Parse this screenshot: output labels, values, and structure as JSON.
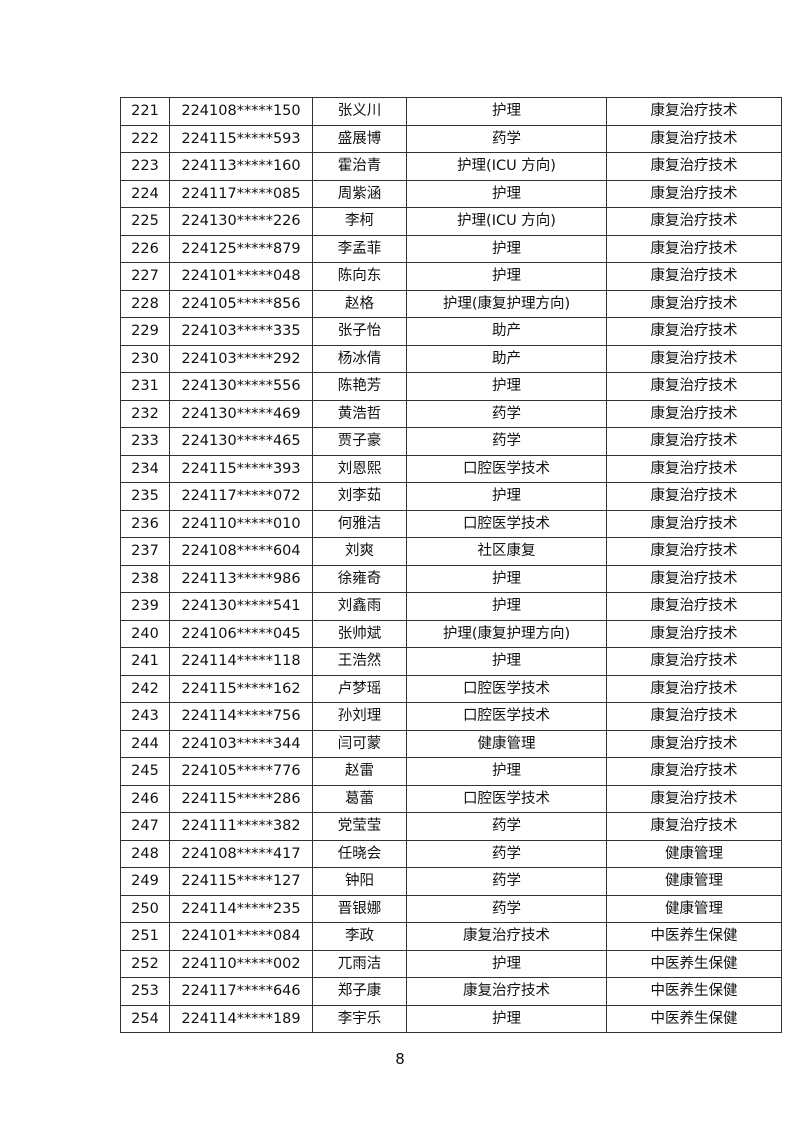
{
  "rows": [
    [
      "221",
      "224108*****150",
      "张义川",
      "护理",
      "康复治疗技术"
    ],
    [
      "222",
      "224115*****593",
      "盛展博",
      "药学",
      "康复治疗技术"
    ],
    [
      "223",
      "224113*****160",
      "霍治青",
      "护理(ICU 方向)",
      "康复治疗技术"
    ],
    [
      "224",
      "224117*****085",
      "周紫涵",
      "护理",
      "康复治疗技术"
    ],
    [
      "225",
      "224130*****226",
      "李柯",
      "护理(ICU 方向)",
      "康复治疗技术"
    ],
    [
      "226",
      "224125*****879",
      "李孟菲",
      "护理",
      "康复治疗技术"
    ],
    [
      "227",
      "224101*****048",
      "陈向东",
      "护理",
      "康复治疗技术"
    ],
    [
      "228",
      "224105*****856",
      "赵格",
      "护理(康复护理方向)",
      "康复治疗技术"
    ],
    [
      "229",
      "224103*****335",
      "张子怡",
      "助产",
      "康复治疗技术"
    ],
    [
      "230",
      "224103*****292",
      "杨冰倩",
      "助产",
      "康复治疗技术"
    ],
    [
      "231",
      "224130*****556",
      "陈艳芳",
      "护理",
      "康复治疗技术"
    ],
    [
      "232",
      "224130*****469",
      "黄浩哲",
      "药学",
      "康复治疗技术"
    ],
    [
      "233",
      "224130*****465",
      "贾子豪",
      "药学",
      "康复治疗技术"
    ],
    [
      "234",
      "224115*****393",
      "刘恩熙",
      "口腔医学技术",
      "康复治疗技术"
    ],
    [
      "235",
      "224117*****072",
      "刘李茹",
      "护理",
      "康复治疗技术"
    ],
    [
      "236",
      "224110*****010",
      "何雅洁",
      "口腔医学技术",
      "康复治疗技术"
    ],
    [
      "237",
      "224108*****604",
      "刘爽",
      "社区康复",
      "康复治疗技术"
    ],
    [
      "238",
      "224113*****986",
      "徐雍奇",
      "护理",
      "康复治疗技术"
    ],
    [
      "239",
      "224130*****541",
      "刘鑫雨",
      "护理",
      "康复治疗技术"
    ],
    [
      "240",
      "224106*****045",
      "张帅斌",
      "护理(康复护理方向)",
      "康复治疗技术"
    ],
    [
      "241",
      "224114*****118",
      "王浩然",
      "护理",
      "康复治疗技术"
    ],
    [
      "242",
      "224115*****162",
      "卢梦瑶",
      "口腔医学技术",
      "康复治疗技术"
    ],
    [
      "243",
      "224114*****756",
      "孙刘理",
      "口腔医学技术",
      "康复治疗技术"
    ],
    [
      "244",
      "224103*****344",
      "闫可蒙",
      "健康管理",
      "康复治疗技术"
    ],
    [
      "245",
      "224105*****776",
      "赵雷",
      "护理",
      "康复治疗技术"
    ],
    [
      "246",
      "224115*****286",
      "葛蕾",
      "口腔医学技术",
      "康复治疗技术"
    ],
    [
      "247",
      "224111*****382",
      "党莹莹",
      "药学",
      "康复治疗技术"
    ],
    [
      "248",
      "224108*****417",
      "任晓会",
      "药学",
      "健康管理"
    ],
    [
      "249",
      "224115*****127",
      "钟阳",
      "药学",
      "健康管理"
    ],
    [
      "250",
      "224114*****235",
      "晋银娜",
      "药学",
      "健康管理"
    ],
    [
      "251",
      "224101*****084",
      "李政",
      "康复治疗技术",
      "中医养生保健"
    ],
    [
      "252",
      "224110*****002",
      "兀雨洁",
      "护理",
      "中医养生保健"
    ],
    [
      "253",
      "224117*****646",
      "郑子康",
      "康复治疗技术",
      "中医养生保健"
    ],
    [
      "254",
      "224114*****189",
      "李宇乐",
      "护理",
      "中医养生保健"
    ]
  ],
  "page_number": "8"
}
